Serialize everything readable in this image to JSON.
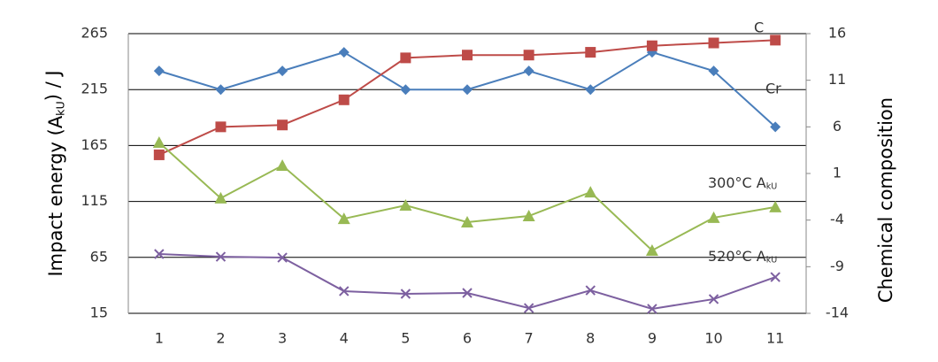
{
  "chart_data": {
    "type": "line",
    "y_label": "Impact energy (AkU) / J",
    "y2_label": "Chemical composition",
    "x": [
      1,
      2,
      3,
      4,
      5,
      6,
      7,
      8,
      9,
      10,
      11
    ],
    "xlim": [
      0.5,
      11.5
    ],
    "xticks": [
      1,
      2,
      3,
      4,
      5,
      6,
      7,
      8,
      9,
      10,
      11
    ],
    "ylim": [
      15,
      265
    ],
    "yticks": [
      15,
      65,
      115,
      165,
      215,
      265
    ],
    "y2lim": [
      -14,
      16
    ],
    "y2ticks": [
      -14,
      -9,
      -4,
      1,
      6,
      11,
      16
    ],
    "grid": true,
    "series": [
      {
        "name": "C",
        "color": "#4a7ebb",
        "marker": "diamond",
        "axis": "y2",
        "values": [
          12,
          10,
          12,
          14,
          10,
          10,
          12,
          10,
          14,
          12,
          6
        ]
      },
      {
        "name": "Cr",
        "color": "#be4b48",
        "marker": "square",
        "axis": "y2",
        "values": [
          3.0,
          6.0,
          6.2,
          8.9,
          13.4,
          13.7,
          13.7,
          14.0,
          14.7,
          15.0,
          15.3
        ]
      },
      {
        "name": "300°C AkU",
        "color": "#98b954",
        "marker": "triangle",
        "values": [
          167.7,
          117.9,
          147.1,
          99.6,
          111.5,
          96.5,
          102,
          123.3,
          71.2,
          100.5,
          110
        ]
      },
      {
        "name": "520°C AkU",
        "color": "#7d60a0",
        "marker": "x",
        "values": [
          68,
          65.6,
          64.8,
          34.8,
          32.4,
          33.2,
          19.7,
          35.5,
          19,
          27.7,
          47.4
        ]
      }
    ]
  }
}
